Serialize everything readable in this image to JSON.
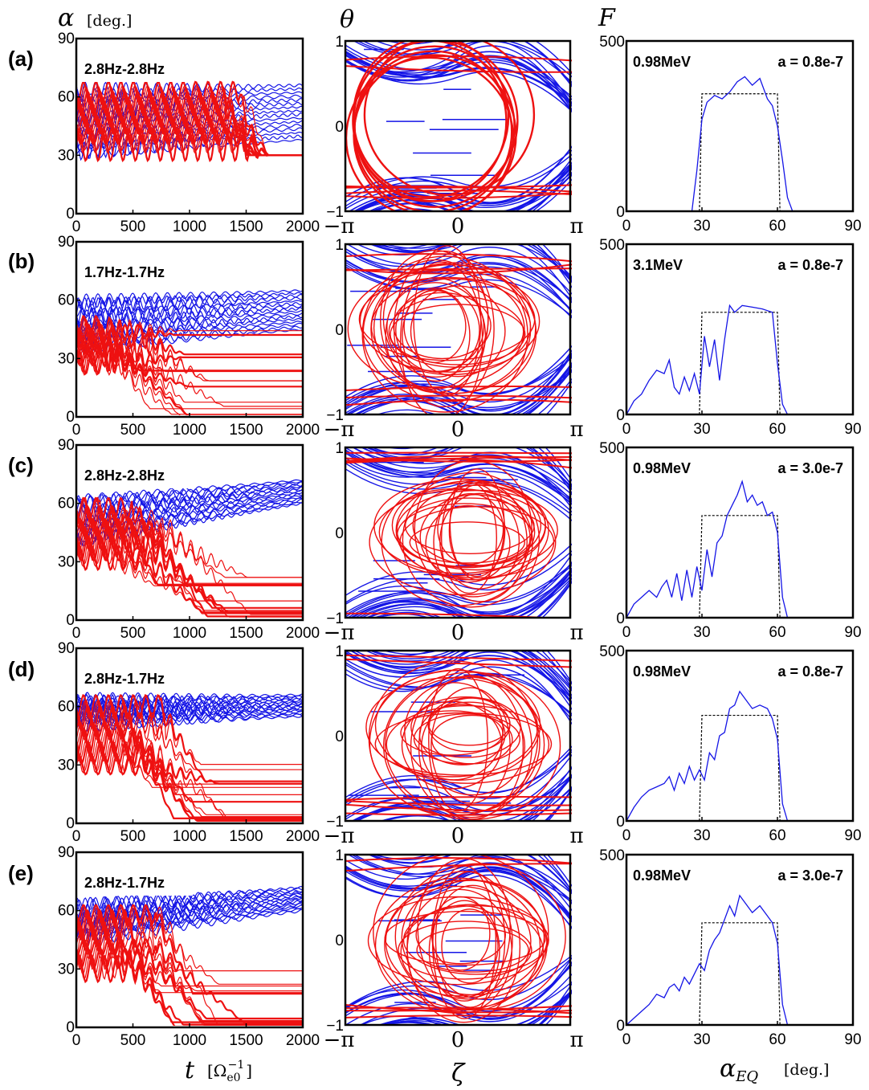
{
  "column_headers": {
    "col1_symbol": "α",
    "col1_unit": "[deg.]",
    "col2_symbol": "θ",
    "col3_symbol": "F"
  },
  "bottom_labels": {
    "col1_symbol": "t",
    "col1_unit": "[Ω",
    "col1_unit_sub": "e0",
    "col1_unit_sup": "−1",
    "col1_unit_close": "]",
    "col2_symbol": "ζ",
    "col3_symbol": "α",
    "col3_sub": "EQ",
    "col3_unit": "[deg.]"
  },
  "ticks": {
    "time_x": [
      "0",
      "500",
      "1000",
      "1500",
      "2000"
    ],
    "alpha_y": [
      "0",
      "30",
      "60",
      "90"
    ],
    "phase_x": [
      "−π",
      "0",
      "π"
    ],
    "phase_y": [
      "−1",
      "0",
      "1"
    ],
    "dist_x": [
      "0",
      "30",
      "60",
      "90"
    ],
    "dist_y": [
      "0",
      "500"
    ]
  },
  "colors": {
    "blue": "#1515e6",
    "red": "#ee1111",
    "box_dash": "#000000"
  },
  "chart_data": [
    {
      "panel": "(a)",
      "type": "line",
      "xlabel": "t [Ω_e0^-1]",
      "ylabel": "α [deg.]",
      "xlim": [
        0,
        2000
      ],
      "ylim": [
        0,
        90
      ],
      "annotation": "2.8Hz-2.8Hz",
      "series": [
        {
          "color": "blue",
          "band_start": [
            30,
            63
          ],
          "band_end": [
            38,
            66
          ]
        },
        {
          "color": "red",
          "band_start": [
            35,
            62
          ],
          "final": 30
        }
      ]
    },
    {
      "panel": "(a)",
      "type": "scatter",
      "xlabel": "ζ",
      "ylabel": "θ",
      "xlim": [
        "−π",
        "π"
      ],
      "ylim": [
        -1,
        1
      ]
    },
    {
      "panel": "(a)",
      "type": "line",
      "xlabel": "α_EQ [deg.]",
      "ylabel": "F",
      "xlim": [
        0,
        90
      ],
      "ylim": [
        0,
        500
      ],
      "annotation_left": "0.98MeV",
      "annotation_right": "a = 0.8e-7",
      "initial_box": [
        30,
        60,
        345
      ],
      "x": [
        0,
        26,
        28,
        30,
        32,
        35,
        38,
        41,
        44,
        47,
        50,
        53,
        56,
        58,
        60,
        62,
        64,
        66,
        90
      ],
      "values": [
        0,
        0,
        120,
        270,
        320,
        340,
        330,
        350,
        380,
        395,
        370,
        390,
        330,
        310,
        250,
        150,
        40,
        0,
        0
      ]
    },
    {
      "panel": "(b)",
      "type": "line",
      "xlabel": "t [Ω_e0^-1]",
      "ylabel": "α [deg.]",
      "xlim": [
        0,
        2000
      ],
      "ylim": [
        0,
        90
      ],
      "annotation": "1.7Hz-1.7Hz",
      "series": [
        {
          "color": "blue",
          "band_start": [
            35,
            60
          ],
          "band_end": [
            45,
            65
          ]
        },
        {
          "color": "red",
          "band_start": [
            28,
            45
          ],
          "final_range": [
            0,
            45
          ]
        }
      ]
    },
    {
      "panel": "(b)",
      "type": "scatter",
      "xlabel": "ζ",
      "ylabel": "θ",
      "xlim": [
        "−π",
        "π"
      ],
      "ylim": [
        -1,
        1
      ]
    },
    {
      "panel": "(b)",
      "type": "line",
      "xlabel": "α_EQ [deg.]",
      "ylabel": "F",
      "xlim": [
        0,
        90
      ],
      "ylim": [
        0,
        500
      ],
      "annotation_left": "3.1MeV",
      "annotation_right": "a = 0.8e-7",
      "initial_box": [
        30,
        60,
        300
      ],
      "x": [
        0,
        3,
        6,
        9,
        12,
        15,
        17,
        19,
        21,
        23,
        25,
        27,
        29,
        31,
        33,
        35,
        37,
        39,
        41,
        43,
        46,
        50,
        54,
        58,
        60,
        62,
        64,
        90
      ],
      "values": [
        0,
        40,
        60,
        100,
        130,
        120,
        160,
        80,
        60,
        110,
        70,
        120,
        60,
        230,
        140,
        220,
        100,
        220,
        320,
        300,
        320,
        315,
        310,
        300,
        150,
        30,
        0,
        0
      ]
    },
    {
      "panel": "(c)",
      "type": "line",
      "xlabel": "t [Ω_e0^-1]",
      "ylabel": "α [deg.]",
      "xlim": [
        0,
        2000
      ],
      "ylim": [
        0,
        90
      ],
      "annotation": "2.8Hz-2.8Hz",
      "series": [
        {
          "color": "blue",
          "band_start": [
            40,
            62
          ],
          "band_end": [
            60,
            72
          ]
        },
        {
          "color": "red",
          "band_start": [
            32,
            57
          ],
          "final_range": [
            0,
            30
          ]
        }
      ]
    },
    {
      "panel": "(c)",
      "type": "scatter",
      "xlabel": "ζ",
      "ylabel": "θ",
      "xlim": [
        "−π",
        "π"
      ],
      "ylim": [
        -1,
        1
      ]
    },
    {
      "panel": "(c)",
      "type": "line",
      "xlabel": "α_EQ [deg.]",
      "ylabel": "F",
      "xlim": [
        0,
        90
      ],
      "ylim": [
        0,
        500
      ],
      "annotation_left": "0.98MeV",
      "annotation_right": "a = 3.0e-7",
      "initial_box": [
        30,
        60,
        300
      ],
      "x": [
        0,
        3,
        6,
        9,
        12,
        14,
        16,
        18,
        20,
        22,
        24,
        26,
        28,
        30,
        32,
        34,
        36,
        38,
        40,
        42,
        44,
        46,
        48,
        50,
        52,
        54,
        56,
        58,
        60,
        62,
        64,
        90
      ],
      "values": [
        0,
        40,
        60,
        80,
        60,
        90,
        110,
        60,
        130,
        50,
        140,
        60,
        150,
        80,
        200,
        120,
        220,
        240,
        300,
        330,
        360,
        400,
        340,
        360,
        330,
        340,
        300,
        310,
        250,
        60,
        0,
        0
      ]
    },
    {
      "panel": "(d)",
      "type": "line",
      "xlabel": "t [Ω_e0^-1]",
      "ylabel": "α [deg.]",
      "xlim": [
        0,
        2000
      ],
      "ylim": [
        0,
        90
      ],
      "annotation": "2.8Hz-1.7Hz",
      "series": [
        {
          "color": "blue",
          "band_start": [
            50,
            64
          ],
          "band_end": [
            55,
            66
          ]
        },
        {
          "color": "red",
          "band_start": [
            30,
            60
          ],
          "final_range": [
            0,
            32
          ]
        }
      ]
    },
    {
      "panel": "(d)",
      "type": "scatter",
      "xlabel": "ζ",
      "ylabel": "θ",
      "xlim": [
        "−π",
        "π"
      ],
      "ylim": [
        -1,
        1
      ]
    },
    {
      "panel": "(d)",
      "type": "line",
      "xlabel": "α_EQ [deg.]",
      "ylabel": "F",
      "xlim": [
        0,
        90
      ],
      "ylim": [
        0,
        500
      ],
      "annotation_left": "0.98MeV",
      "annotation_right": "a = 0.8e-7",
      "initial_box": [
        30,
        60,
        310
      ],
      "x": [
        0,
        3,
        6,
        9,
        12,
        15,
        17,
        19,
        21,
        23,
        25,
        27,
        29,
        31,
        33,
        35,
        37,
        39,
        41,
        43,
        45,
        47,
        50,
        53,
        56,
        58,
        60,
        62,
        64,
        90
      ],
      "values": [
        0,
        40,
        70,
        90,
        100,
        110,
        130,
        90,
        140,
        110,
        160,
        120,
        150,
        120,
        200,
        180,
        250,
        260,
        330,
        340,
        380,
        360,
        330,
        340,
        330,
        300,
        240,
        50,
        0,
        0
      ]
    },
    {
      "panel": "(e)",
      "type": "line",
      "xlabel": "t [Ω_e0^-1]",
      "ylabel": "α [deg.]",
      "xlim": [
        0,
        2000
      ],
      "ylim": [
        0,
        90
      ],
      "annotation": "2.8Hz-1.7Hz",
      "series": [
        {
          "color": "blue",
          "band_start": [
            45,
            63
          ],
          "band_end": [
            60,
            72
          ]
        },
        {
          "color": "red",
          "band_start": [
            30,
            58
          ],
          "final_range": [
            0,
            32
          ]
        }
      ]
    },
    {
      "panel": "(e)",
      "type": "scatter",
      "xlabel": "ζ",
      "ylabel": "θ",
      "xlim": [
        "−π",
        "π"
      ],
      "ylim": [
        -1,
        1
      ]
    },
    {
      "panel": "(e)",
      "type": "line",
      "xlabel": "α_EQ [deg.]",
      "ylabel": "F",
      "xlim": [
        0,
        90
      ],
      "ylim": [
        0,
        500
      ],
      "annotation_left": "0.98MeV",
      "annotation_right": "a = 3.0e-7",
      "initial_box": [
        30,
        60,
        300
      ],
      "x": [
        0,
        3,
        6,
        9,
        12,
        15,
        17,
        19,
        21,
        23,
        25,
        27,
        29,
        31,
        33,
        35,
        37,
        39,
        41,
        43,
        45,
        47,
        50,
        53,
        56,
        58,
        60,
        62,
        64,
        90
      ],
      "values": [
        0,
        20,
        40,
        60,
        90,
        80,
        110,
        120,
        100,
        140,
        120,
        150,
        180,
        160,
        220,
        250,
        270,
        310,
        350,
        320,
        380,
        360,
        330,
        350,
        320,
        300,
        240,
        60,
        0,
        0
      ]
    }
  ]
}
